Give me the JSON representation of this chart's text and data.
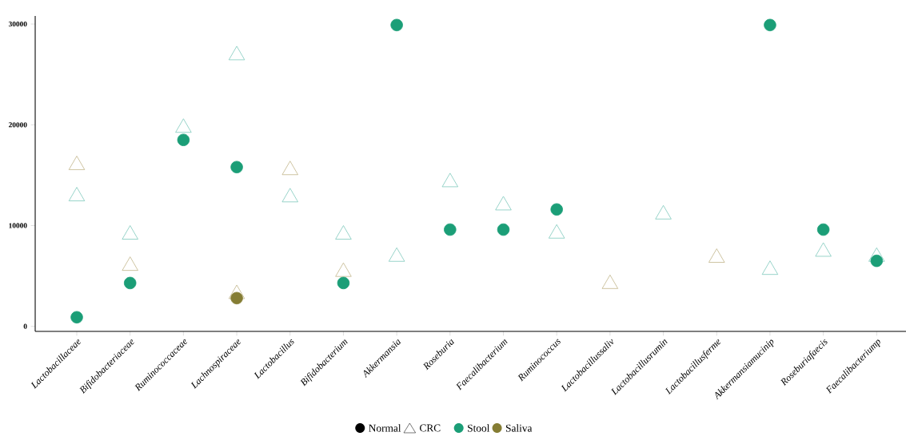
{
  "chart_data": {
    "type": "scatter",
    "categories": [
      "Lactobacillaceae",
      "Bifidobacteriaceae",
      "Ruminococcaceae",
      "Lachnospiraceae",
      "Lactobacillus",
      "Bifidobacterium",
      "Akkermansia",
      "Roseburia",
      "Faecalibacterium",
      "Ruminococcus",
      "Lactobacillussaliv",
      "Lactobacillusrumin",
      "Lactobacillusferme",
      "Akkermansiamucinip",
      "Roseburiafaecis",
      "Faecalibacteriump"
    ],
    "series": [
      {
        "color": "#7fc9bc",
        "marker": "triangle",
        "values": [
          12900,
          9100,
          19700,
          26900,
          12800,
          9100,
          6900,
          14300,
          12000,
          9200,
          null,
          11100,
          null,
          5600,
          7400,
          6900
        ]
      },
      {
        "color": "#c2b58a",
        "marker": "triangle",
        "values": [
          16000,
          6000,
          null,
          3200,
          15500,
          5400,
          null,
          null,
          null,
          null,
          4200,
          null,
          6800,
          null,
          null,
          null
        ]
      },
      {
        "color": "#1b9e77",
        "marker": "circle",
        "values": [
          900,
          4300,
          18500,
          15800,
          null,
          4300,
          29900,
          9600,
          9600,
          11600,
          null,
          null,
          null,
          29900,
          9600,
          6500
        ]
      },
      {
        "color": "#857d34",
        "marker": "circle",
        "values": [
          null,
          null,
          null,
          2800,
          null,
          null,
          null,
          null,
          null,
          null,
          null,
          null,
          null,
          null,
          null,
          null
        ]
      }
    ],
    "ylim": [
      -500,
      30800
    ],
    "yticks": [
      0,
      10000,
      20000,
      30000
    ],
    "annotations": [
      "Normal",
      "CRC",
      "Stool",
      "Saliva"
    ]
  }
}
